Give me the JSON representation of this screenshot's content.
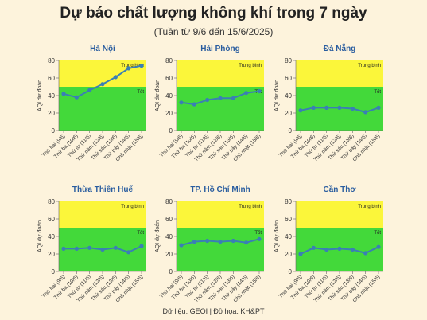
{
  "title": "Dự báo chất lượng không khí trong 7 ngày",
  "subtitle": "(Tuần từ 9/6 đến 15/6/2025)",
  "footer": "Dữ liệu: GEOI | Đồ họa: KH&PT",
  "colors": {
    "good_zone": "#43d93a",
    "moderate_zone": "#fbf63a",
    "line": "#3a7fb5",
    "city_title": "#2a5d9f",
    "background": "#fdf3dc"
  },
  "chart_data": [
    {
      "type": "line",
      "title": "Hà Nội",
      "ylabel": "AQI dự đoán",
      "ylim": [
        0,
        80
      ],
      "yticks": [
        0,
        20,
        40,
        60,
        80
      ],
      "zones": [
        {
          "label": "Tốt",
          "from": 0,
          "to": 50
        },
        {
          "label": "Trung bình",
          "from": 50,
          "to": 80
        }
      ],
      "categories": [
        "Thứ hai (9/6)",
        "Thứ ba (10/6)",
        "Thứ tư (11/6)",
        "Thứ năm (12/6)",
        "Thứ sáu (13/6)",
        "Thứ bảy (14/6)",
        "Chủ nhật (15/6)"
      ],
      "values": [
        42,
        38,
        46,
        53,
        61,
        71,
        74
      ]
    },
    {
      "type": "line",
      "title": "Hải Phòng",
      "ylabel": "AQI dự đoán",
      "ylim": [
        0,
        80
      ],
      "yticks": [
        0,
        20,
        40,
        60,
        80
      ],
      "zones": [
        {
          "label": "Tốt",
          "from": 0,
          "to": 50
        },
        {
          "label": "Trung bình",
          "from": 50,
          "to": 80
        }
      ],
      "categories": [
        "Thứ hai (9/6)",
        "Thứ ba (10/6)",
        "Thứ tư (11/6)",
        "Thứ năm (12/6)",
        "Thứ sáu (13/6)",
        "Thứ bảy (14/6)",
        "Chủ nhật (15/6)"
      ],
      "values": [
        32,
        30,
        35,
        37,
        37,
        43,
        45
      ]
    },
    {
      "type": "line",
      "title": "Đà Nẵng",
      "ylabel": "AQI dự đoán",
      "ylim": [
        0,
        80
      ],
      "yticks": [
        0,
        20,
        40,
        60,
        80
      ],
      "zones": [
        {
          "label": "Tốt",
          "from": 0,
          "to": 50
        },
        {
          "label": "Trung bình",
          "from": 50,
          "to": 80
        }
      ],
      "categories": [
        "Thứ hai (9/6)",
        "Thứ ba (10/6)",
        "Thứ tư (11/6)",
        "Thứ năm (12/6)",
        "Thứ sáu (13/6)",
        "Thứ bảy (14/6)",
        "Chủ nhật (15/6)"
      ],
      "values": [
        23,
        26,
        26,
        26,
        25,
        21,
        26
      ]
    },
    {
      "type": "line",
      "title": "Thừa Thiên Huế",
      "ylabel": "AQI dự đoán",
      "ylim": [
        0,
        80
      ],
      "yticks": [
        0,
        20,
        40,
        60,
        80
      ],
      "zones": [
        {
          "label": "Tốt",
          "from": 0,
          "to": 50
        },
        {
          "label": "Trung bình",
          "from": 50,
          "to": 80
        }
      ],
      "categories": [
        "Thứ hai (9/6)",
        "Thứ ba (10/6)",
        "Thứ tư (11/6)",
        "Thứ năm (12/6)",
        "Thứ sáu (13/6)",
        "Thứ bảy (14/6)",
        "Chủ nhật (15/6)"
      ],
      "values": [
        26,
        26,
        27,
        25,
        27,
        22,
        29
      ]
    },
    {
      "type": "line",
      "title": "TP. Hồ Chí Minh",
      "ylabel": "AQI dự đoán",
      "ylim": [
        0,
        80
      ],
      "yticks": [
        0,
        20,
        40,
        60,
        80
      ],
      "zones": [
        {
          "label": "Tốt",
          "from": 0,
          "to": 50
        },
        {
          "label": "Trung bình",
          "from": 50,
          "to": 80
        }
      ],
      "categories": [
        "Thứ hai (9/6)",
        "Thứ ba (10/6)",
        "Thứ tư (11/6)",
        "Thứ năm (12/6)",
        "Thứ sáu (13/6)",
        "Thứ bảy (14/6)",
        "Chủ nhật (15/6)"
      ],
      "values": [
        30,
        34,
        35,
        34,
        35,
        33,
        37
      ]
    },
    {
      "type": "line",
      "title": "Cần Thơ",
      "ylabel": "AQI dự đoán",
      "ylim": [
        0,
        80
      ],
      "yticks": [
        0,
        20,
        40,
        60,
        80
      ],
      "zones": [
        {
          "label": "Tốt",
          "from": 0,
          "to": 50
        },
        {
          "label": "Trung bình",
          "from": 50,
          "to": 80
        }
      ],
      "categories": [
        "Thứ hai (9/6)",
        "Thứ ba (10/6)",
        "Thứ tư (11/6)",
        "Thứ năm (12/6)",
        "Thứ sáu (13/6)",
        "Thứ bảy (14/6)",
        "Chủ nhật (15/6)"
      ],
      "values": [
        20,
        27,
        25,
        26,
        25,
        21,
        28
      ]
    }
  ]
}
